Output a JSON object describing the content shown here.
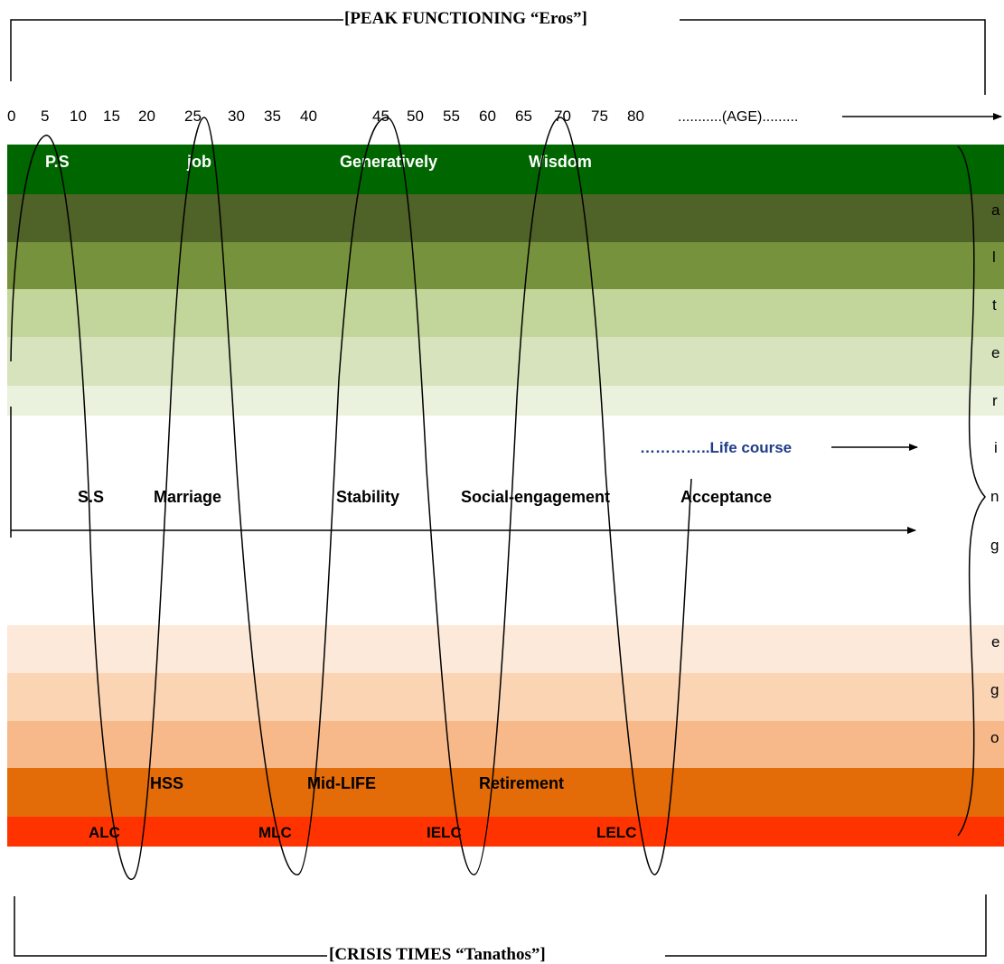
{
  "titles": {
    "top": "[PEAK FUNCTIONING “Eros”]",
    "bottom": "[CRISIS TIMES “Tanathos”]"
  },
  "age_axis": {
    "ticks": [
      "0",
      "5",
      "10",
      "15",
      "20",
      "25",
      "30",
      "35",
      "40",
      "45",
      "50",
      "55",
      "60",
      "65",
      "70",
      "75",
      "80"
    ],
    "label": "...........(AGE)........."
  },
  "bands": {
    "top_colors": [
      "#006600",
      "#4f6228",
      "#76923c",
      "#c2d69b",
      "#d6e3bc",
      "#eaf1dd"
    ],
    "bottom_colors": [
      "#fde9d9",
      "#fbd4b4",
      "#f8b98a",
      "#e36c09",
      "#ff3300"
    ]
  },
  "labels": {
    "peaks": [
      "P.S",
      "job",
      "Generatively",
      "Wisdom"
    ],
    "middle": [
      "S.S",
      "Marriage",
      "Stability",
      "Social-engagement",
      "Acceptance"
    ],
    "life_course": "…………..Life course",
    "crises_mid": [
      "HSS",
      "Mid-LIFE",
      "Retirement"
    ],
    "crises_low": [
      "ALC",
      "MLC",
      "IELC",
      "LELC"
    ]
  },
  "side_letters": {
    "top": [
      "a",
      "l",
      "t",
      "e",
      "r",
      "i",
      "n",
      "g"
    ],
    "bottom": [
      "e",
      "g",
      "o"
    ]
  }
}
